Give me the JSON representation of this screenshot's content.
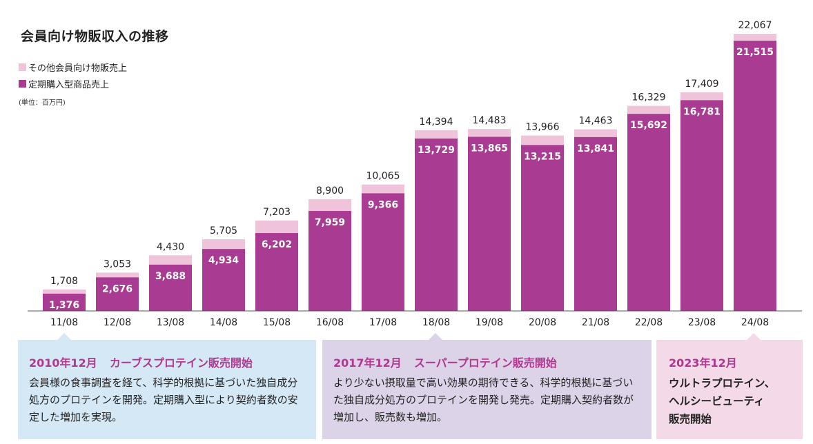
{
  "title": "会員向け物販収入の推移",
  "legend": [
    {
      "label": "その他会員向け物販売上",
      "color": "#efc3da"
    },
    {
      "label": "定期購入型商品売上",
      "color": "#a93c92"
    }
  ],
  "unit": "(単位：百万円)",
  "chart_data": {
    "type": "bar",
    "stacked": true,
    "categories": [
      "11/08",
      "12/08",
      "13/08",
      "14/08",
      "15/08",
      "16/08",
      "17/08",
      "18/08",
      "19/08",
      "20/08",
      "21/08",
      "22/08",
      "23/08",
      "24/08"
    ],
    "series": [
      {
        "name": "定期購入型商品売上",
        "values": [
          1376,
          2676,
          3688,
          4934,
          6202,
          7959,
          9366,
          13729,
          13865,
          13215,
          13841,
          15692,
          16781,
          21515
        ]
      },
      {
        "name": "その他会員向け物販売上",
        "values": [
          332,
          377,
          742,
          771,
          1001,
          941,
          699,
          665,
          618,
          751,
          622,
          637,
          628,
          552
        ]
      }
    ],
    "totals": [
      1708,
      3053,
      4430,
      5705,
      7203,
      8900,
      10065,
      14394,
      14483,
      13966,
      14463,
      16329,
      17409,
      22067
    ],
    "main_labels": [
      "1,376",
      "2,676",
      "3,688",
      "4,934",
      "6,202",
      "7,959",
      "9,366",
      "13,729",
      "13,865",
      "13,215",
      "13,841",
      "15,692",
      "16,781",
      "21,515"
    ],
    "total_labels": [
      "1,708",
      "3,053",
      "4,430",
      "5,705",
      "7,203",
      "8,900",
      "10,065",
      "14,394",
      "14,483",
      "13,966",
      "14,463",
      "16,329",
      "17,409",
      "22,067"
    ],
    "ylim": [
      0,
      22067
    ]
  },
  "events": [
    {
      "date": "2010年12月",
      "headline": "カーブスプロテイン販売開始",
      "body": "会員様の食事調査を経て、科学的根拠に基づいた独自成分処方のプロテインを開発。定期購入型により契約者数の安定した増加を実現。"
    },
    {
      "date": "2017年12月",
      "headline": "スーパープロテイン販売開始",
      "body": "より少ない摂取量で高い効果の期待できる、科学的根拠に基づいた独自成分処方のプロテインを開発し発売。定期購入契約者数が増加し、販売数も増加。"
    },
    {
      "date": "2023年12月",
      "headline_lines": [
        "ウルトラプロテイン、",
        "ヘルシービューティ",
        "販売開始"
      ]
    }
  ]
}
